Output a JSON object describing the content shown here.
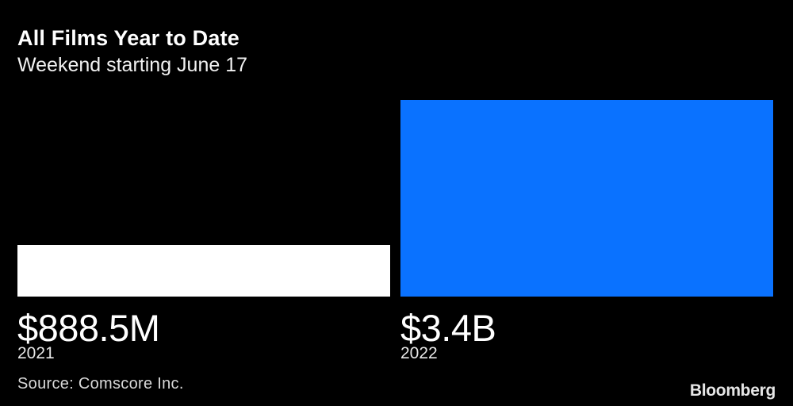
{
  "title": "All Films Year to Date",
  "subtitle": "Weekend starting June 17",
  "source": "Source: Comscore Inc.",
  "brand": "Bloomberg",
  "colors": {
    "background": "#000000",
    "bar_2021": "#ffffff",
    "bar_2022": "#0a72ff"
  },
  "chart_data": {
    "type": "bar",
    "title": "All Films Year to Date",
    "subtitle": "Weekend starting June 17",
    "categories": [
      "2021",
      "2022"
    ],
    "values": [
      888.5,
      3400
    ],
    "unit": "millions USD",
    "data_labels": [
      "$888.5M",
      "$3.4B"
    ],
    "bar_colors": [
      "#ffffff",
      "#0a72ff"
    ],
    "xlabel": "",
    "ylabel": "",
    "ylim": [
      0,
      3400
    ],
    "grid": false,
    "legend": "none"
  }
}
